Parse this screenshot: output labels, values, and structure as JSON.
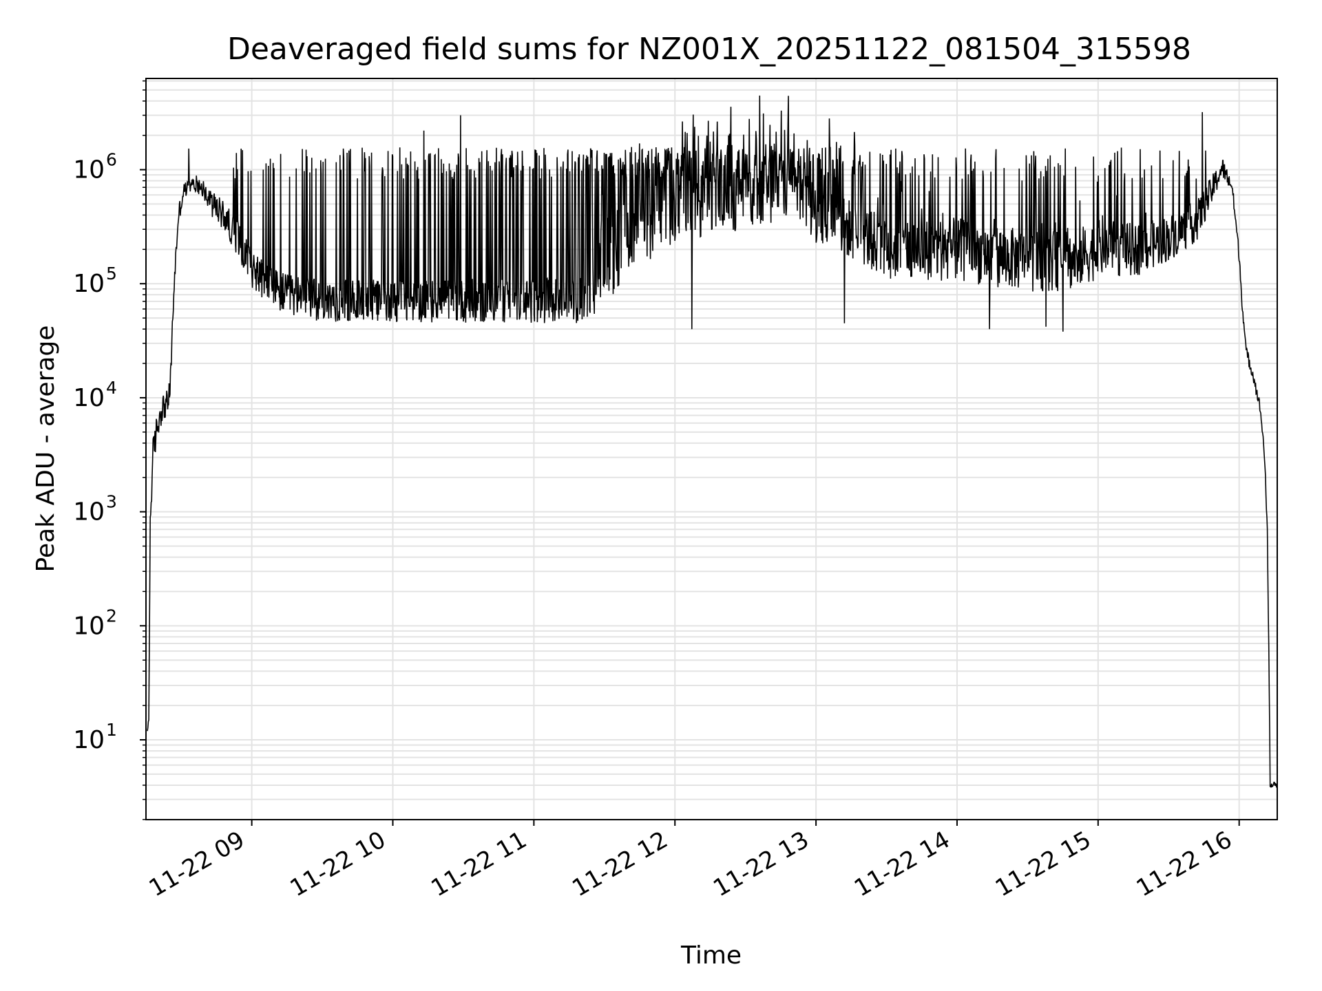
{
  "chart_data": {
    "type": "line",
    "title": "Deaveraged field sums for NZ001X_20251122_081504_315598",
    "xlabel": "Time",
    "ylabel": "Peak ADU - average",
    "yscale": "log",
    "ylim_log10": [
      0.3,
      6.8
    ],
    "xlim_hours": [
      8.25,
      16.27
    ],
    "grid": "on",
    "line_color": "#000000",
    "grid_color": "#e3e3e3",
    "x_ticks": [
      {
        "hour": 9,
        "label": "11-22 09"
      },
      {
        "hour": 10,
        "label": "11-22 10"
      },
      {
        "hour": 11,
        "label": "11-22 11"
      },
      {
        "hour": 12,
        "label": "11-22 12"
      },
      {
        "hour": 13,
        "label": "11-22 13"
      },
      {
        "hour": 14,
        "label": "11-22 14"
      },
      {
        "hour": 15,
        "label": "11-22 15"
      },
      {
        "hour": 16,
        "label": "11-22 16"
      }
    ],
    "y_ticks": [
      {
        "exp": 1,
        "base": "10",
        "sup": "1"
      },
      {
        "exp": 2,
        "base": "10",
        "sup": "2"
      },
      {
        "exp": 3,
        "base": "10",
        "sup": "3"
      },
      {
        "exp": 4,
        "base": "10",
        "sup": "4"
      },
      {
        "exp": 5,
        "base": "10",
        "sup": "5"
      },
      {
        "exp": 6,
        "base": "10",
        "sup": "6"
      }
    ],
    "series": [
      {
        "name": "field sums",
        "baseline_log10": [
          [
            8.26,
            1.05
          ],
          [
            8.27,
            1.2
          ],
          [
            8.28,
            2.9
          ],
          [
            8.3,
            3.5
          ],
          [
            8.33,
            3.75
          ],
          [
            8.36,
            3.9
          ],
          [
            8.4,
            3.95
          ],
          [
            8.42,
            4.05
          ],
          [
            8.45,
            5.0
          ],
          [
            8.48,
            5.6
          ],
          [
            8.52,
            5.82
          ],
          [
            8.6,
            5.88
          ],
          [
            8.65,
            5.85
          ],
          [
            8.7,
            5.72
          ],
          [
            8.8,
            5.6
          ],
          [
            8.9,
            5.4
          ],
          [
            9.0,
            5.15
          ],
          [
            9.1,
            5.0
          ],
          [
            9.25,
            4.9
          ],
          [
            9.5,
            4.85
          ],
          [
            10.0,
            4.85
          ],
          [
            10.5,
            4.85
          ],
          [
            11.0,
            4.85
          ],
          [
            11.3,
            4.85
          ],
          [
            11.5,
            4.95
          ],
          [
            11.7,
            5.3
          ],
          [
            12.0,
            5.6
          ],
          [
            12.5,
            5.72
          ],
          [
            12.85,
            5.85
          ],
          [
            13.0,
            5.6
          ],
          [
            13.3,
            5.45
          ],
          [
            13.5,
            5.3
          ],
          [
            14.0,
            5.3
          ],
          [
            14.5,
            5.2
          ],
          [
            14.8,
            5.2
          ],
          [
            15.0,
            5.3
          ],
          [
            15.3,
            5.3
          ],
          [
            15.5,
            5.4
          ],
          [
            15.7,
            5.55
          ],
          [
            15.8,
            5.8
          ],
          [
            15.88,
            6.02
          ],
          [
            15.95,
            5.85
          ],
          [
            16.0,
            5.25
          ],
          [
            16.02,
            4.85
          ],
          [
            16.05,
            4.4
          ],
          [
            16.1,
            4.2
          ],
          [
            16.15,
            3.9
          ],
          [
            16.18,
            3.5
          ],
          [
            16.2,
            2.8
          ],
          [
            16.21,
            1.8
          ],
          [
            16.22,
            0.6
          ],
          [
            16.23,
            0.58
          ],
          [
            16.27,
            0.6
          ]
        ],
        "noise_log10": [
          [
            8.25,
            0.0
          ],
          [
            8.3,
            0.15
          ],
          [
            8.45,
            0.1
          ],
          [
            8.55,
            0.06
          ],
          [
            8.75,
            0.12
          ],
          [
            9.0,
            0.18
          ],
          [
            11.5,
            0.2
          ],
          [
            12.0,
            0.24
          ],
          [
            13.0,
            0.26
          ],
          [
            14.0,
            0.28
          ],
          [
            15.0,
            0.26
          ],
          [
            15.7,
            0.18
          ],
          [
            15.95,
            0.06
          ],
          [
            16.2,
            0.05
          ],
          [
            16.27,
            0.0
          ]
        ],
        "spike_density": [
          [
            8.25,
            0.0
          ],
          [
            8.7,
            0.02
          ],
          [
            8.9,
            0.08
          ],
          [
            9.2,
            0.16
          ],
          [
            9.6,
            0.2
          ],
          [
            10.2,
            0.24
          ],
          [
            10.8,
            0.28
          ],
          [
            11.2,
            0.26
          ],
          [
            11.6,
            0.34
          ],
          [
            12.0,
            0.4
          ],
          [
            12.6,
            0.3
          ],
          [
            13.0,
            0.18
          ],
          [
            14.0,
            0.14
          ],
          [
            15.0,
            0.1
          ],
          [
            15.6,
            0.06
          ],
          [
            15.95,
            0.0
          ],
          [
            16.27,
            0.0
          ]
        ],
        "spike_peak_log10": 6.2,
        "notable_peaks": [
          {
            "hour": 10.48,
            "value": 3000000
          },
          {
            "hour": 10.22,
            "value": 2200000
          },
          {
            "hour": 11.75,
            "value": 1700000
          },
          {
            "hour": 12.38,
            "value": 2000000
          },
          {
            "hour": 12.8,
            "value": 2300000
          },
          {
            "hour": 15.74,
            "value": 3200000
          }
        ],
        "notable_dips": [
          {
            "hour": 12.12,
            "value": 40000
          },
          {
            "hour": 13.2,
            "value": 45000
          },
          {
            "hour": 14.23,
            "value": 40000
          },
          {
            "hour": 14.63,
            "value": 42000
          },
          {
            "hour": 14.75,
            "value": 38000
          }
        ],
        "point_count": 2400
      }
    ]
  }
}
